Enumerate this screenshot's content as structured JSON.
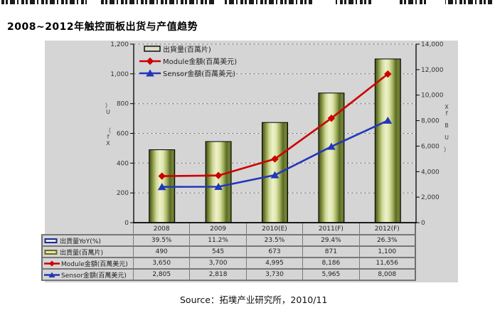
{
  "page": {
    "title": "2008~2012年触控面板出货与产值趋势",
    "source": "Source：拓墣产业研究所，2010/11",
    "top_strip_note": "clipped-cut-off-text-line"
  },
  "chart_data": {
    "type": "combo",
    "title": "2008~2012年触控面板出货与产值趋势",
    "categories": [
      "2008",
      "2009",
      "2010(E)",
      "2011(F)",
      "2012(F)"
    ],
    "series": [
      {
        "name": "出貨量(百萬片)",
        "chart_type": "bar",
        "axis": "left",
        "values": [
          490,
          545,
          673,
          871,
          1100
        ],
        "color": "#b9c272"
      },
      {
        "name": "Module金額(百萬美元)",
        "chart_type": "line",
        "marker": "diamond",
        "axis": "right",
        "values": [
          3650,
          3700,
          4995,
          8186,
          11656
        ],
        "color": "#cc0000"
      },
      {
        "name": "Sensor金額(百萬美元)",
        "chart_type": "line",
        "marker": "triangle",
        "axis": "right",
        "values": [
          2805,
          2818,
          3730,
          5965,
          8008
        ],
        "color": "#2238b8"
      }
    ],
    "left_axis": {
      "min": 0,
      "max": 1200,
      "step": 200,
      "tick_labels": [
        "0",
        "200",
        "400",
        "600",
        "800",
        "1,000",
        "1,200"
      ],
      "title_glyphs": [
        "）",
        "U",
        "（",
        "f",
        "X"
      ]
    },
    "right_axis": {
      "min": 0,
      "max": 14000,
      "step": 2000,
      "tick_labels": [
        "0",
        "2,000",
        "4,000",
        "6,000",
        "8,000",
        "10,000",
        "12,000",
        "14,000"
      ],
      "title_glyphs": [
        "X",
        "f",
        "B",
        "U",
        "）"
      ]
    },
    "grid": "dashed-horizontal",
    "legend_position": "top-left-inside-plot",
    "plot_bg": "#d5d5d5"
  },
  "table": {
    "col_header": [
      "2008",
      "2009",
      "2010(E)",
      "2011(F)",
      "2012(F)"
    ],
    "rows": [
      {
        "icon": "navy-bar-swatch",
        "label": "出貨量YoY(%)",
        "values": [
          "39.5%",
          "11.2%",
          "23.5%",
          "29.4%",
          "26.3%"
        ]
      },
      {
        "icon": "olive-bar-swatch",
        "label": "出貨量(百萬片)",
        "values": [
          "490",
          "545",
          "673",
          "871",
          "1,100"
        ]
      },
      {
        "icon": "red-diamond-line",
        "label": "Module金額(百萬美元)",
        "values": [
          "3,650",
          "3,700",
          "4,995",
          "8,186",
          "11,656"
        ]
      },
      {
        "icon": "blue-triangle-line",
        "label": "Sensor金額(百萬美元)",
        "values": [
          "2,805",
          "2,818",
          "3,730",
          "5,965",
          "8,008"
        ]
      }
    ]
  },
  "colors": {
    "chart_background": "#d5d5d5",
    "bar_edge": "#3e4a14",
    "bar_center": "#eef1c9",
    "module_line": "#cc0000",
    "sensor_line": "#2238b8",
    "grid_line": "#8f8f8f",
    "axis_line": "#000000",
    "table_border": "#777777"
  }
}
